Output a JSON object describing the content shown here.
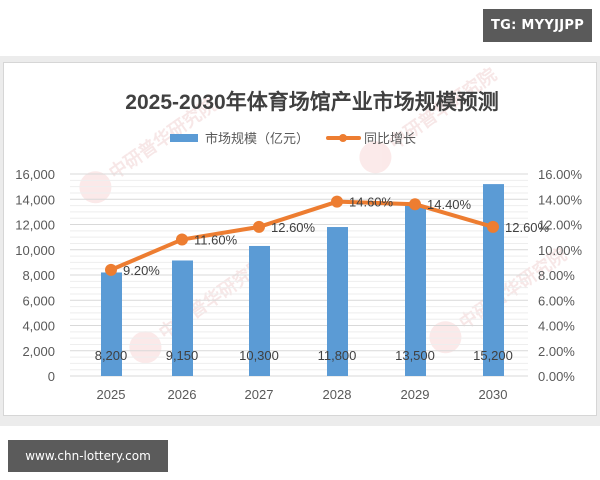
{
  "badges": {
    "top": "TG: MYYJJPP",
    "bottom": "www.chn-lottery.com"
  },
  "chart_data": {
    "type": "bar",
    "title": "2025-2030年体育场馆产业市场规模预测",
    "categories": [
      "2025",
      "2026",
      "2027",
      "2028",
      "2029",
      "2030"
    ],
    "series": [
      {
        "name": "市场规模（亿元）",
        "type": "bar",
        "axis": "left",
        "color": "#5b9bd5",
        "values": [
          8200,
          9150,
          10300,
          11800,
          13500,
          15200
        ],
        "labels": [
          "8,200",
          "9,150",
          "10,300",
          "11,800",
          "13,500",
          "15,200"
        ]
      },
      {
        "name": "同比增长",
        "type": "line",
        "axis": "right",
        "color": "#ed7d31",
        "values": [
          9.2,
          11.6,
          12.6,
          14.6,
          14.4,
          12.6
        ],
        "labels": [
          "9.20%",
          "11.60%",
          "12.60%",
          "14.60%",
          "14.40%",
          "12.60%"
        ]
      }
    ],
    "left_axis": {
      "ylim": [
        0,
        16000
      ],
      "ticks": [
        "0",
        "2,000",
        "4,000",
        "6,000",
        "8,000",
        "10,000",
        "12,000",
        "14,000",
        "16,000"
      ]
    },
    "right_axis": {
      "ylim": [
        0,
        16
      ],
      "ticks": [
        "0.00%",
        "2.00%",
        "4.00%",
        "6.00%",
        "8.00%",
        "10.00%",
        "12.00%",
        "14.00%",
        "16.00%"
      ]
    },
    "xlabel": "",
    "ylabel": "",
    "legend": {
      "position": "top",
      "items": [
        "市场规模（亿元）",
        "同比增长"
      ]
    },
    "grid": true
  }
}
